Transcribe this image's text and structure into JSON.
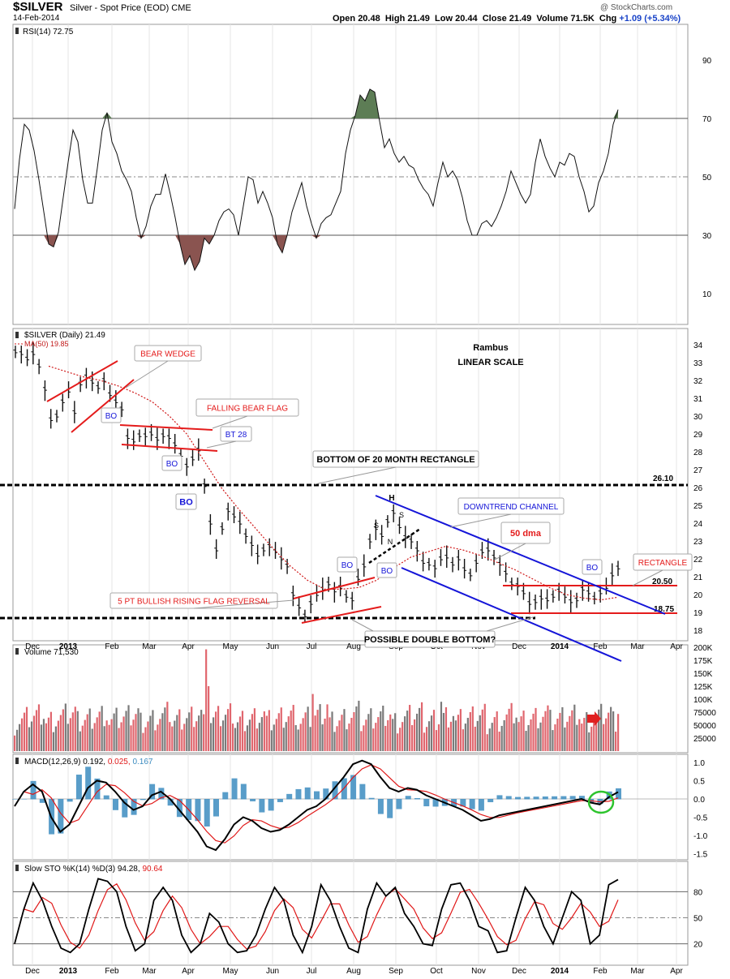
{
  "header": {
    "symbol": "$SILVER",
    "description": "Silver - Spot Price (EOD)  CME",
    "date": "14-Feb-2014",
    "open_label": "Open",
    "open": "20.48",
    "high_label": "High",
    "high": "21.49",
    "low_label": "Low",
    "low": "20.44",
    "close_label": "Close",
    "close": "21.49",
    "volume_label": "Volume",
    "volume": "71.5K",
    "chg_label": "Chg",
    "chg": "+1.09 (+5.34%)",
    "copyright": "@ StockCharts.com"
  },
  "x_axis": {
    "labels": [
      "Dec",
      "2013",
      "Feb",
      "Mar",
      "Apr",
      "May",
      "Jun",
      "Jul",
      "Aug",
      "Sep",
      "Oct",
      "Nov",
      "Dec",
      "2014",
      "Feb",
      "Mar",
      "Apr"
    ],
    "bold": [
      "2013",
      "2014"
    ]
  },
  "colors": {
    "red": "#e41b1b",
    "blue": "#1515d8",
    "rsi_fill": "#8a5450",
    "rsi_top_fill": "#5d7d55",
    "vol_up": "#e0666e",
    "vol_down": "#7a7a7a",
    "macd_hist": "#3c8cc0",
    "green": "#2ec42e"
  },
  "chart_data": [
    {
      "type": "line",
      "title": "RSI(14) 72.75",
      "y_ticks": [
        10,
        30,
        50,
        70,
        90
      ],
      "ylim": [
        0,
        100
      ],
      "levels": [
        30,
        70
      ],
      "series": [
        {
          "name": "RSI(14)",
          "values": [
            39,
            56,
            68,
            66,
            59,
            49,
            38,
            27,
            26,
            31,
            43,
            55,
            66,
            62,
            49,
            41,
            41,
            53,
            66,
            72,
            62,
            58,
            52,
            49,
            45,
            36,
            29,
            33,
            40,
            44,
            44,
            51,
            44,
            36,
            27,
            20,
            23,
            18,
            21,
            29,
            27,
            30,
            35,
            38,
            39,
            37,
            30,
            40,
            50,
            49,
            41,
            45,
            41,
            36,
            27,
            24,
            30,
            38,
            43,
            48,
            40,
            34,
            29,
            34,
            36,
            37,
            41,
            45,
            58,
            66,
            71,
            78,
            76,
            80,
            79,
            69,
            60,
            63,
            58,
            55,
            57,
            54,
            53,
            49,
            46,
            44,
            40,
            48,
            55,
            50,
            52,
            49,
            43,
            35,
            30,
            30,
            34,
            35,
            33,
            36,
            40,
            45,
            52,
            48,
            44,
            41,
            44,
            55,
            63,
            57,
            53,
            50,
            55,
            54,
            58,
            57,
            50,
            45,
            38,
            40,
            48,
            52,
            58,
            68,
            73
          ]
        }
      ],
      "shaded_below": [
        30
      ],
      "shaded_above": [
        70
      ]
    },
    {
      "type": "line",
      "title": "$SILVER (Daily) 21.49",
      "ma_label": "MA(50) 19.85",
      "scale": "linear",
      "ylim": [
        18,
        34
      ],
      "y_ticks": [
        18,
        19,
        20,
        21,
        22,
        23,
        24,
        25,
        26,
        27,
        28,
        29,
        30,
        31,
        32,
        33,
        34
      ],
      "series": [
        {
          "name": "$SILVER (Daily)",
          "values": [
            33.6,
            33.5,
            33.2,
            33.5,
            32.8,
            31.5,
            29.8,
            30.0,
            30.8,
            31.4,
            30.2,
            31.8,
            32.2,
            31.9,
            31.6,
            32.0,
            31.2,
            30.8,
            30.4,
            28.8,
            28.6,
            28.9,
            28.9,
            29.0,
            28.7,
            28.9,
            28.8,
            28.4,
            27.8,
            27.2,
            27.6,
            28.1,
            26.1,
            24.0,
            22.5,
            23.7,
            24.7,
            24.4,
            24.0,
            23.3,
            22.8,
            22.2,
            22.5,
            22.7,
            22.4,
            22.0,
            21.6,
            20.0,
            19.3,
            18.8,
            19.5,
            20.0,
            20.3,
            20.6,
            20.2,
            20.4,
            19.9,
            19.7,
            20.9,
            21.6,
            23.0,
            23.7,
            23.3,
            24.1,
            24.6,
            23.8,
            23.2,
            23.0,
            22.5,
            21.8,
            21.7,
            21.5,
            22.0,
            22.1,
            21.7,
            22.0,
            21.4,
            21.1,
            21.8,
            22.4,
            22.5,
            22.1,
            21.7,
            21.2,
            20.6,
            20.5,
            20.1,
            19.5,
            19.6,
            19.8,
            19.7,
            19.9,
            20.2,
            19.9,
            19.6,
            19.7,
            20.3,
            20.1,
            19.8,
            20.1,
            20.4,
            21.1,
            21.49
          ]
        },
        {
          "name": "MA(50)",
          "values": [
            32.8,
            32.5,
            32.2,
            32.0,
            31.7,
            31.3,
            30.8,
            30.0,
            29.0,
            27.5,
            26.0,
            24.8,
            23.7,
            22.6,
            21.6,
            20.8,
            20.3,
            20.3,
            20.4,
            20.8,
            21.5,
            22.1,
            22.4,
            22.7,
            22.5,
            22.2,
            21.8,
            21.4,
            20.9,
            20.4,
            20.0,
            19.8,
            19.7,
            19.85
          ]
        }
      ]
    },
    {
      "type": "bar",
      "title": "Volume 71,530",
      "y_ticks": [
        "25000",
        "50000",
        "75000",
        "100K",
        "125K",
        "150K",
        "175K",
        "200K"
      ],
      "ylim": [
        0,
        200000
      ]
    },
    {
      "type": "line",
      "title": "MACD(12,26,9)",
      "values_text": [
        "0.192",
        "0.025",
        "0.167"
      ],
      "y_ticks": [
        "1.0",
        "0.5",
        "0.0",
        "-0.5",
        "-1.0",
        "-1.5"
      ],
      "ylim": [
        -1.6,
        1.1
      ]
    },
    {
      "type": "line",
      "title": "Slow STO %K(14) %D(3)",
      "values_text": [
        "94.28",
        "90.64"
      ],
      "y_ticks": [
        20,
        50,
        80
      ],
      "ylim": [
        0,
        100
      ]
    }
  ],
  "annotations": {
    "rambus": "Rambus",
    "linear_scale": "LINEAR SCALE",
    "bear_wedge": "BEAR WEDGE",
    "falling_bear_flag": "FALLING BEAR FLAG",
    "bt28": "BT 28",
    "bo": "BO",
    "bottom_rect": "BOTTOM OF 20 MONTH RECTANGLE",
    "level_2610": "26.10",
    "h": "H",
    "s": "S",
    "n": "N",
    "downtrend_channel": "DOWNTREND CHANNEL",
    "dma50": "50 dma",
    "rectangle": "RECTANGLE",
    "level_2050": "20.50",
    "level_1875": "18.75",
    "rising_flag": "5 PT BULLISH RISING FLAG REVERSAL",
    "double_bottom": "POSSIBLE DOUBLE BOTTOM?"
  }
}
